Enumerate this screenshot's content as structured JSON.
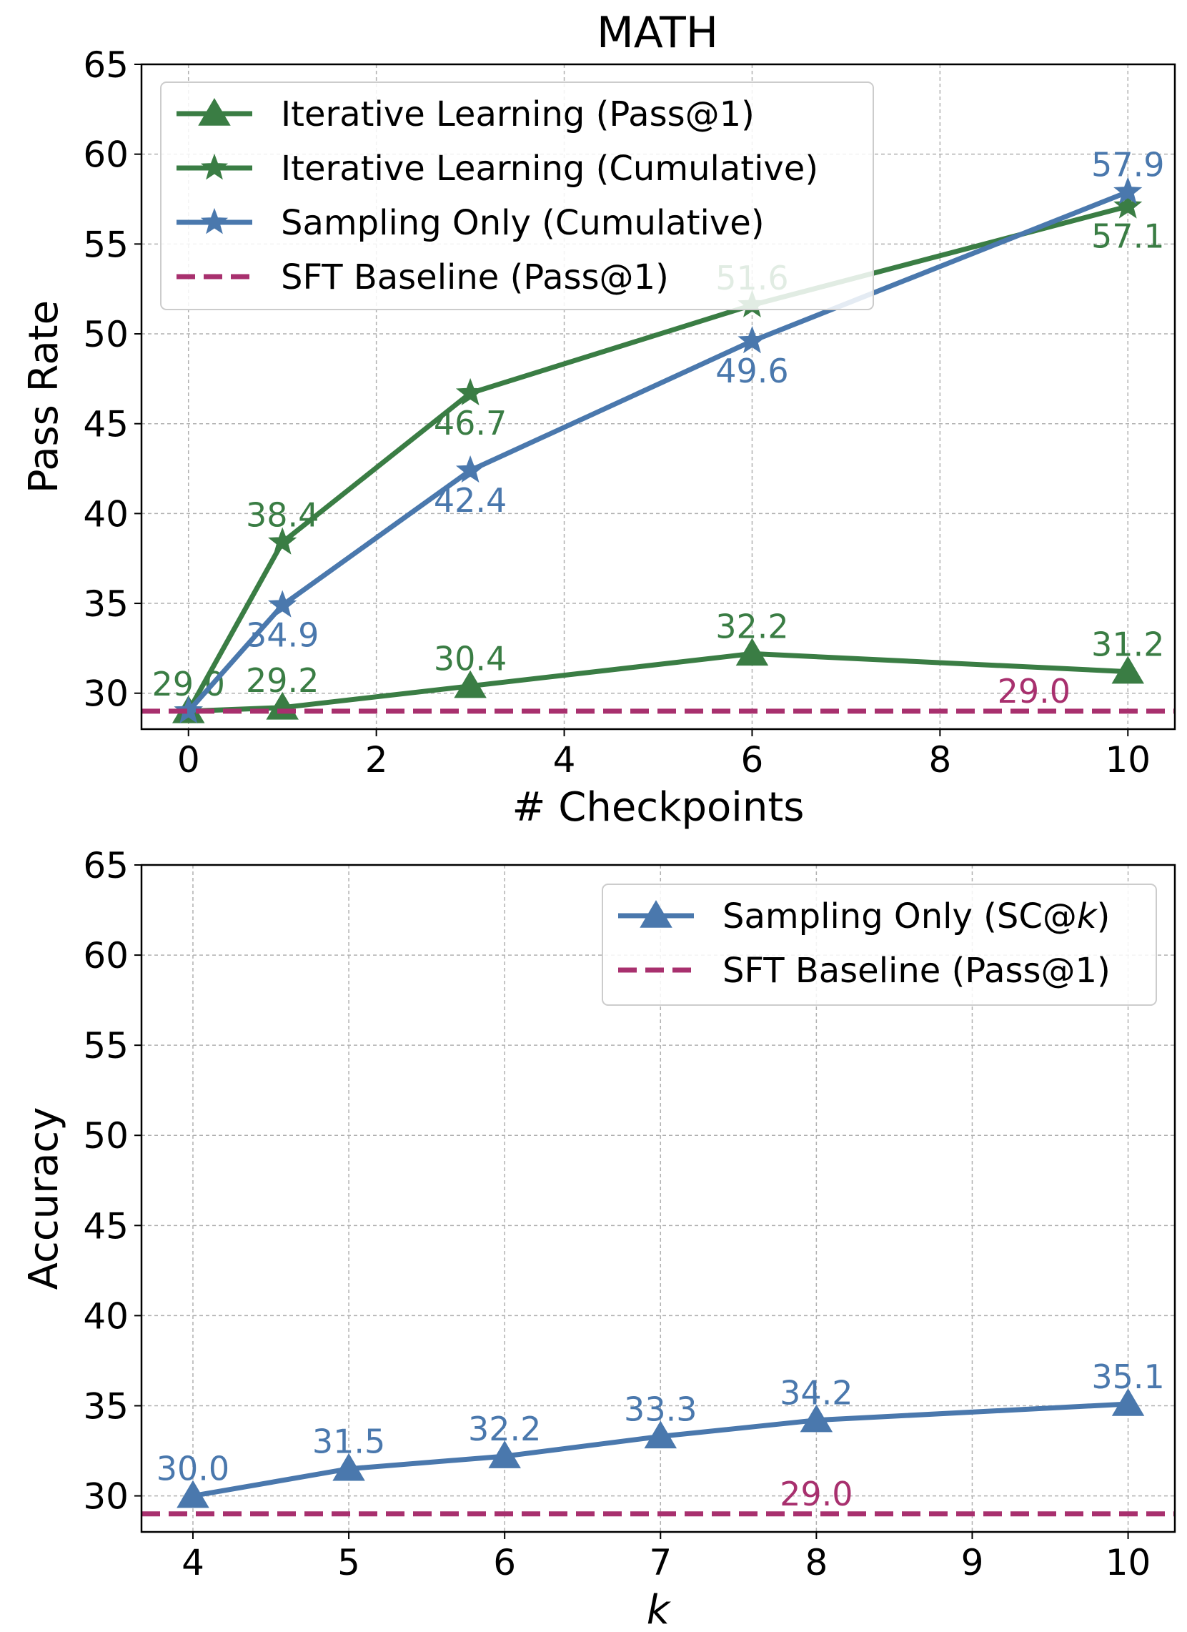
{
  "figure_title": "MATH",
  "colors": {
    "green": "#3a7d44",
    "blue": "#4a78ad",
    "magenta": "#a8306e",
    "grid": "#b0b0b0",
    "axis": "#000000"
  },
  "chart_data": [
    {
      "type": "line",
      "title": "MATH",
      "xlabel": "# Checkpoints",
      "ylabel": "Pass Rate",
      "xlim": [
        -0.5,
        10.5
      ],
      "ylim": [
        28,
        65
      ],
      "xticks": [
        0,
        2,
        4,
        6,
        8,
        10
      ],
      "xtick_labels": [
        "0",
        "2",
        "4",
        "6",
        "8",
        "10"
      ],
      "yticks": [
        30,
        35,
        40,
        45,
        50,
        55,
        60,
        65
      ],
      "ytick_labels": [
        "30",
        "35",
        "40",
        "45",
        "50",
        "55",
        "60",
        "65"
      ],
      "grid": true,
      "legend_position": "upper-left",
      "series": [
        {
          "name": "Iterative Learning (Pass@1)",
          "color": "#3a7d44",
          "marker": "triangle",
          "x": [
            0,
            1,
            3,
            6,
            10
          ],
          "y": [
            29.0,
            29.2,
            30.4,
            32.2,
            31.2
          ],
          "labels": [
            "29.0",
            "29.2",
            "30.4",
            "32.2",
            "31.2"
          ],
          "label_dy": [
            "above",
            "above",
            "above",
            "above",
            "above"
          ]
        },
        {
          "name": "Iterative Learning (Cumulative)",
          "color": "#3a7d44",
          "marker": "star",
          "x": [
            0,
            1,
            3,
            6,
            10
          ],
          "y": [
            29.0,
            38.4,
            46.7,
            51.6,
            57.1
          ],
          "labels": [
            "",
            "38.4",
            "46.7",
            "51.6",
            "57.1"
          ],
          "label_dy": [
            "above",
            "above",
            "below",
            "above",
            "below"
          ]
        },
        {
          "name": "Sampling Only (Cumulative)",
          "color": "#4a78ad",
          "marker": "star",
          "x": [
            0,
            1,
            3,
            6,
            10
          ],
          "y": [
            29.0,
            34.9,
            42.4,
            49.6,
            57.9
          ],
          "labels": [
            "",
            "34.9",
            "42.4",
            "49.6",
            "57.9"
          ],
          "label_dy": [
            "above",
            "below",
            "below",
            "below",
            "above"
          ]
        },
        {
          "name": "SFT Baseline (Pass@1)",
          "color": "#a8306e",
          "style": "dashed",
          "x": [
            -0.5,
            10.5
          ],
          "y": [
            29.0,
            29.0
          ],
          "annotation": {
            "x": 9,
            "y": 29.0,
            "text": "29.0"
          }
        }
      ]
    },
    {
      "type": "line",
      "title": "",
      "xlabel": "k",
      "ylabel": "Accuracy",
      "xlim": [
        3.67,
        10.3
      ],
      "ylim": [
        28,
        65
      ],
      "xticks": [
        4,
        5,
        6,
        7,
        8,
        9,
        10
      ],
      "xtick_labels": [
        "4",
        "5",
        "6",
        "7",
        "8",
        "9",
        "10"
      ],
      "yticks": [
        30,
        35,
        40,
        45,
        50,
        55,
        60,
        65
      ],
      "ytick_labels": [
        "30",
        "35",
        "40",
        "45",
        "50",
        "55",
        "60",
        "65"
      ],
      "grid": true,
      "legend_position": "upper-right",
      "series": [
        {
          "name": "Sampling Only (SC@k)",
          "name_prefix": "Sampling Only (SC@",
          "name_italic": "k",
          "name_suffix": ")",
          "color": "#4a78ad",
          "marker": "triangle",
          "x": [
            4,
            5,
            6,
            7,
            8,
            10
          ],
          "y": [
            30.0,
            31.5,
            32.2,
            33.3,
            34.2,
            35.1
          ],
          "labels": [
            "30.0",
            "31.5",
            "32.2",
            "33.3",
            "34.2",
            "35.1"
          ],
          "label_dy": [
            "above",
            "above",
            "above",
            "above",
            "above",
            "above"
          ]
        },
        {
          "name": "SFT Baseline (Pass@1)",
          "color": "#a8306e",
          "style": "dashed",
          "x": [
            3.67,
            10.3
          ],
          "y": [
            29.0,
            29.0
          ],
          "annotation": {
            "x": 8.0,
            "y": 29.0,
            "text": "29.0"
          }
        }
      ]
    }
  ]
}
